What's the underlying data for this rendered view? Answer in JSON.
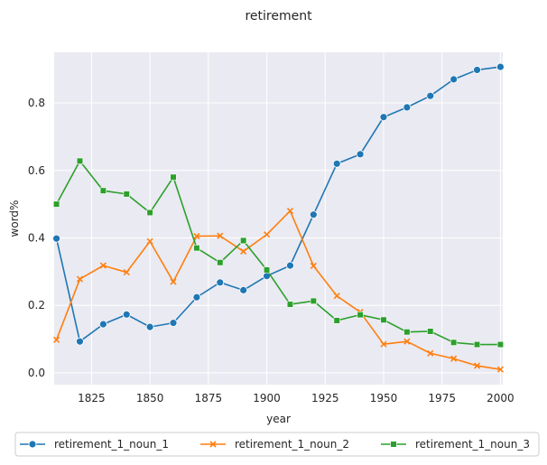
{
  "chart_data": {
    "type": "line",
    "title": "retirement",
    "xlabel": "year",
    "ylabel": "word%",
    "xlim": [
      1809,
      2001
    ],
    "ylim": [
      -0.035,
      0.95
    ],
    "grid": true,
    "legend_position": "bottom",
    "x_ticks": [
      1825,
      1850,
      1875,
      1900,
      1925,
      1950,
      1975,
      2000
    ],
    "y_ticks": [
      0.0,
      0.2,
      0.4,
      0.6,
      0.8
    ],
    "x": [
      1810,
      1820,
      1830,
      1840,
      1850,
      1860,
      1870,
      1880,
      1890,
      1900,
      1910,
      1920,
      1930,
      1940,
      1950,
      1960,
      1970,
      1980,
      1990,
      2000
    ],
    "series": [
      {
        "name": "retirement_1_noun_1",
        "color": "#1f77b4",
        "marker": "circle",
        "values": [
          0.398,
          0.093,
          0.144,
          0.173,
          0.136,
          0.148,
          0.224,
          0.268,
          0.245,
          0.287,
          0.318,
          0.469,
          0.62,
          0.648,
          0.758,
          0.787,
          0.821,
          0.87,
          0.898,
          0.907
        ]
      },
      {
        "name": "retirement_1_noun_2",
        "color": "#ff7f0e",
        "marker": "x",
        "values": [
          0.098,
          0.278,
          0.318,
          0.298,
          0.39,
          0.27,
          0.405,
          0.406,
          0.36,
          0.41,
          0.48,
          0.317,
          0.228,
          0.18,
          0.085,
          0.093,
          0.058,
          0.042,
          0.021,
          0.01
        ]
      },
      {
        "name": "retirement_1_noun_3",
        "color": "#2ca02c",
        "marker": "square",
        "values": [
          0.5,
          0.628,
          0.54,
          0.53,
          0.475,
          0.58,
          0.37,
          0.327,
          0.392,
          0.305,
          0.203,
          0.213,
          0.155,
          0.172,
          0.157,
          0.121,
          0.123,
          0.09,
          0.084,
          0.084
        ]
      }
    ]
  }
}
